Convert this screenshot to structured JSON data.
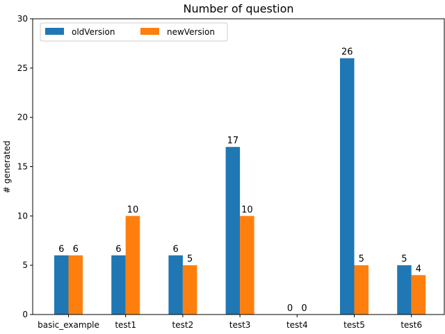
{
  "chart_data": {
    "type": "bar",
    "title": "Number of question",
    "xlabel": "",
    "ylabel": "# generated",
    "categories": [
      "basic_example",
      "test1",
      "test2",
      "test3",
      "test4",
      "test5",
      "test6"
    ],
    "series": [
      {
        "name": "oldVersion",
        "values": [
          6,
          6,
          6,
          17,
          0,
          26,
          5
        ],
        "color": "#1f77b4"
      },
      {
        "name": "newVersion",
        "values": [
          6,
          10,
          5,
          10,
          0,
          5,
          4
        ],
        "color": "#ff7f0e"
      }
    ],
    "ylim": [
      0,
      30
    ],
    "yticks": [
      0,
      5,
      10,
      15,
      20,
      25,
      30
    ],
    "grid": false,
    "legend_position": "top-left"
  }
}
